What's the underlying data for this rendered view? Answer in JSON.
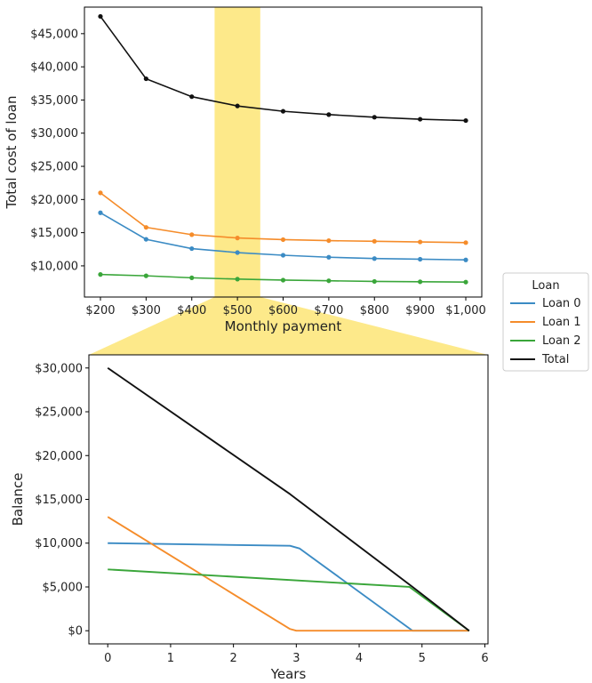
{
  "chart_data": [
    {
      "type": "line",
      "xlabel": "Monthly payment",
      "ylabel": "Total cost of loan",
      "x": [
        200,
        300,
        400,
        500,
        600,
        700,
        800,
        900,
        1000
      ],
      "x_tick_labels": [
        "$200",
        "$300",
        "$400",
        "$500",
        "$600",
        "$700",
        "$800",
        "$900",
        "$1,000"
      ],
      "y_ticks": [
        10000,
        15000,
        20000,
        25000,
        30000,
        35000,
        40000,
        45000
      ],
      "y_tick_labels": [
        "$10,000",
        "$15,000",
        "$20,000",
        "$25,000",
        "$30,000",
        "$35,000",
        "$40,000",
        "$45,000"
      ],
      "xlim": [
        165,
        1035
      ],
      "ylim": [
        5300,
        49000
      ],
      "highlight_x_range": [
        450,
        550
      ],
      "highlight_color": "#fde98a",
      "markers": true,
      "series": [
        {
          "name": "Loan 0",
          "color": "#3b8bc4",
          "values": [
            18000,
            14000,
            12600,
            12000,
            11600,
            11300,
            11100,
            11000,
            10900
          ]
        },
        {
          "name": "Loan 1",
          "color": "#f58c2a",
          "values": [
            21000,
            15800,
            14700,
            14200,
            13950,
            13800,
            13700,
            13600,
            13500
          ]
        },
        {
          "name": "Loan 2",
          "color": "#3aa63a",
          "values": [
            8700,
            8500,
            8200,
            8000,
            7850,
            7750,
            7650,
            7600,
            7550
          ]
        },
        {
          "name": "Total",
          "color": "#111111",
          "values": [
            47600,
            38200,
            35500,
            34100,
            33300,
            32800,
            32400,
            32100,
            31900
          ]
        }
      ]
    },
    {
      "type": "line",
      "xlabel": "Years",
      "ylabel": "Balance",
      "x_ticks": [
        0,
        1,
        2,
        3,
        4,
        5,
        6
      ],
      "x_tick_labels": [
        "0",
        "1",
        "2",
        "3",
        "4",
        "5",
        "6"
      ],
      "y_ticks": [
        0,
        5000,
        10000,
        15000,
        20000,
        25000,
        30000
      ],
      "y_tick_labels": [
        "$0",
        "$5,000",
        "$10,000",
        "$15,000",
        "$20,000",
        "$25,000",
        "$30,000"
      ],
      "xlim": [
        -0.3,
        6.05
      ],
      "ylim": [
        -1500,
        31500
      ],
      "series": [
        {
          "name": "Loan 0",
          "color": "#3b8bc4",
          "points": [
            [
              0,
              10000
            ],
            [
              2.9,
              9700
            ],
            [
              3.05,
              9400
            ],
            [
              4.85,
              0
            ],
            [
              5.75,
              0
            ]
          ]
        },
        {
          "name": "Loan 1",
          "color": "#f58c2a",
          "points": [
            [
              0,
              13000
            ],
            [
              2.9,
              200
            ],
            [
              3.0,
              0
            ],
            [
              5.75,
              0
            ]
          ]
        },
        {
          "name": "Loan 2",
          "color": "#3aa63a",
          "points": [
            [
              0,
              7000
            ],
            [
              4.8,
              5000
            ],
            [
              5.75,
              0
            ]
          ]
        },
        {
          "name": "Total",
          "color": "#111111",
          "points": [
            [
              0,
              30000
            ],
            [
              2.9,
              15600
            ],
            [
              4.85,
              5000
            ],
            [
              5.75,
              0
            ]
          ]
        }
      ]
    }
  ],
  "legend": {
    "title": "Loan",
    "placement": "right",
    "entries": [
      {
        "name": "Loan 0",
        "color": "#3b8bc4"
      },
      {
        "name": "Loan 1",
        "color": "#f58c2a"
      },
      {
        "name": "Loan 2",
        "color": "#3aa63a"
      },
      {
        "name": "Total",
        "color": "#111111"
      }
    ]
  }
}
